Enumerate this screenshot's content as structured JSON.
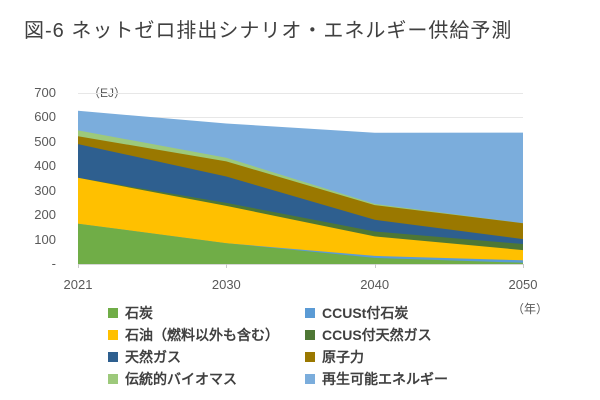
{
  "title": "図-6 ネットゼロ排出シナリオ・エネルギー供給予測",
  "axis_unit_y": "（EJ）",
  "axis_unit_x": "（年）",
  "colors": {
    "title_text": "#404040",
    "axis_text": "#595959",
    "legend_text": "#404040",
    "gridline": "#E7E7E7",
    "background": "#FFFFFF"
  },
  "chart_data": {
    "type": "area",
    "stacked": true,
    "title": "図-6 ネットゼロ排出シナリオ・エネルギー供給予測",
    "xlabel": "（年）",
    "ylabel": "（EJ）",
    "ylim": [
      0,
      700
    ],
    "y_tick_interval": 100,
    "y_ticks": [
      "-",
      "100",
      "200",
      "300",
      "400",
      "500",
      "600",
      "700"
    ],
    "grid": true,
    "legend_position": "bottom",
    "categories": [
      "2021",
      "2030",
      "2040",
      "2050"
    ],
    "series": [
      {
        "key": "coal",
        "name": "石炭",
        "color": "#70AD47",
        "values": [
          165,
          85,
          25,
          5
        ]
      },
      {
        "key": "ccus-coal",
        "name": "CCUSt付石炭",
        "color": "#5B9BD5",
        "values": [
          0,
          0,
          8,
          10
        ]
      },
      {
        "key": "oil",
        "name": "石油（燃料以外も含む）",
        "color": "#FFC000",
        "values": [
          188,
          153,
          80,
          42
        ]
      },
      {
        "key": "ccus-natural-gas",
        "name": "CCUS付天然ガス",
        "color": "#4E7735",
        "values": [
          0,
          12,
          20,
          25
        ]
      },
      {
        "key": "natural-gas",
        "name": "天然ガス",
        "color": "#2E5F8F",
        "values": [
          138,
          108,
          48,
          20
        ]
      },
      {
        "key": "nuclear",
        "name": "原子力",
        "color": "#9A7800",
        "values": [
          32,
          62,
          60,
          65
        ]
      },
      {
        "key": "traditional-biomass",
        "name": "伝統的バイオマス",
        "color": "#9DC97B",
        "values": [
          24,
          15,
          5,
          0
        ]
      },
      {
        "key": "renewables",
        "name": "再生可能エネルギー",
        "color": "#7BADDC",
        "values": [
          80,
          140,
          291,
          371
        ]
      }
    ],
    "legend_rows": [
      [
        "石炭",
        "CCUSt付石炭"
      ],
      [
        "石油（燃料以外も含む）",
        "CCUS付天然ガス"
      ],
      [
        "天然ガス",
        "原子力"
      ],
      [
        "伝統的バイオマス",
        "再生可能エネルギー"
      ]
    ]
  }
}
